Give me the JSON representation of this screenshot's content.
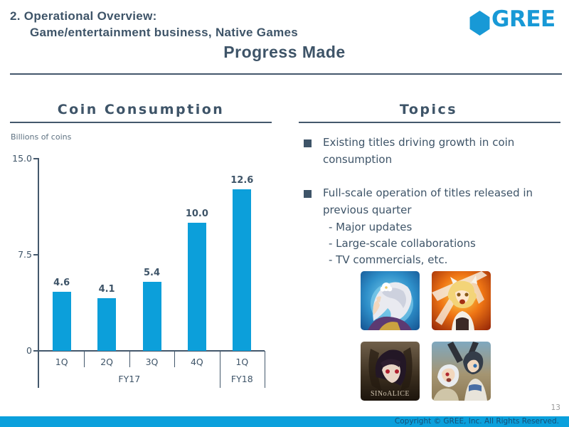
{
  "header": {
    "title_line1": "2. Operational Overview:",
    "title_line2": "Game/entertainment business, Native Games",
    "title_line3": "Progress Made",
    "logo_text": "GREE"
  },
  "coin_panel": {
    "title": "Coin Consumption",
    "unit_label": "Billions of coins"
  },
  "topics_panel": {
    "title": "Topics",
    "bullets": [
      "Existing titles driving growth in coin consumption",
      "Full-scale operation of titles released in previous quarter"
    ],
    "sub_bullets": [
      "- Major updates",
      "- Large-scale collaborations",
      "- TV commercials, etc."
    ],
    "game_icons": [
      {
        "name": "white-haired-girl-blue-moon-game-icon",
        "label": ""
      },
      {
        "name": "blonde-girl-fiery-battle-game-icon",
        "label": ""
      },
      {
        "name": "sinoalice-game-icon",
        "label": "SINoALICE"
      },
      {
        "name": "danmachi-two-characters-game-icon",
        "label": ""
      }
    ]
  },
  "footer": {
    "page_number": "13",
    "copyright": "Copyright © GREE, Inc. All Rights Reserved."
  },
  "colors": {
    "accent_blue": "#0C9FDA",
    "slate_text": "#3E5468",
    "logo_blue": "#1899D6",
    "footer_bar": "#0BA0DC"
  },
  "chart_data": {
    "type": "bar",
    "title": "Coin Consumption",
    "ylabel": "Billions of coins",
    "categories": [
      "1Q",
      "2Q",
      "3Q",
      "4Q",
      "1Q"
    ],
    "group_labels": [
      {
        "label": "FY17",
        "span": 4
      },
      {
        "label": "FY18",
        "span": 1
      }
    ],
    "values": [
      4.6,
      4.1,
      5.4,
      10.0,
      12.6
    ],
    "value_labels": [
      "4.6",
      "4.1",
      "5.4",
      "10.0",
      "12.6"
    ],
    "yticks": [
      0,
      7.5,
      15.0
    ],
    "ytick_labels": [
      "0",
      "7.5",
      "15.0"
    ],
    "ylim": [
      0,
      15
    ],
    "bar_color": "#0C9FDA",
    "grid": false,
    "legend": null
  }
}
